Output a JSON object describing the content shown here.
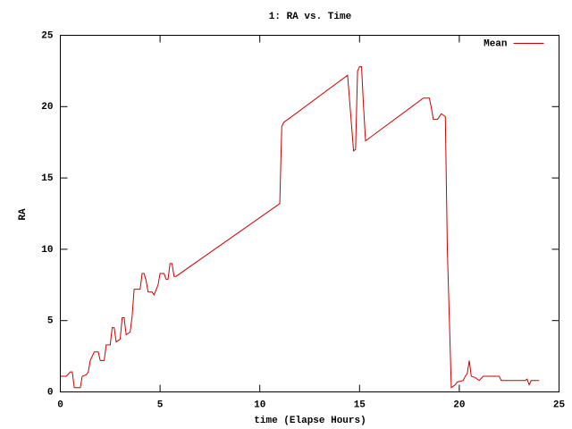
{
  "chart_data": {
    "type": "line",
    "title": "1: RA vs. Time",
    "xlabel": "time (Elapse Hours)",
    "ylabel": "RA",
    "x": [
      0,
      0.3,
      0.5,
      0.6,
      0.7,
      1.0,
      1.1,
      1.3,
      1.4,
      1.5,
      1.7,
      1.9,
      2.0,
      2.2,
      2.3,
      2.5,
      2.6,
      2.7,
      2.8,
      3.0,
      3.1,
      3.2,
      3.3,
      3.5,
      3.6,
      3.7,
      4.0,
      4.1,
      4.2,
      4.3,
      4.4,
      4.6,
      4.7,
      4.9,
      5.0,
      5.2,
      5.3,
      5.4,
      5.5,
      5.6,
      5.7,
      5.8,
      11.0,
      11.1,
      11.2,
      11.5,
      14.4,
      14.7,
      14.8,
      14.9,
      15.0,
      15.1,
      15.2,
      15.3,
      18.2,
      18.5,
      18.6,
      18.7,
      18.9,
      19.1,
      19.2,
      19.3,
      19.4,
      19.6,
      19.8,
      19.9,
      20.2,
      20.3,
      20.4,
      20.5,
      20.6,
      20.8,
      21.0,
      21.2,
      22.0,
      22.1,
      23.3,
      23.4,
      23.5,
      23.6,
      24.0
    ],
    "series": [
      {
        "name": "Mean",
        "color": "#cc0000",
        "values": [
          1.1,
          1.1,
          1.4,
          1.4,
          0.3,
          0.3,
          1.1,
          1.2,
          1.4,
          2.2,
          2.8,
          2.8,
          2.2,
          2.2,
          3.3,
          3.3,
          4.5,
          4.5,
          3.5,
          3.7,
          5.2,
          5.2,
          4.0,
          4.2,
          5.3,
          7.2,
          7.2,
          8.3,
          8.3,
          7.8,
          7.0,
          7.0,
          6.8,
          7.5,
          8.3,
          8.3,
          7.9,
          7.9,
          9.0,
          9.0,
          8.1,
          8.1,
          13.2,
          18.6,
          18.9,
          19.2,
          22.2,
          16.9,
          17.0,
          22.5,
          22.8,
          22.8,
          20.0,
          17.6,
          20.6,
          20.6,
          19.9,
          19.1,
          19.1,
          19.5,
          19.4,
          19.3,
          10.0,
          0.3,
          0.5,
          0.7,
          0.8,
          1.1,
          1.3,
          2.2,
          1.1,
          1.0,
          0.8,
          1.1,
          1.1,
          0.8,
          0.8,
          0.9,
          0.5,
          0.8,
          0.8
        ]
      }
    ],
    "xlim": [
      0,
      25
    ],
    "ylim": [
      0,
      25
    ],
    "xticks": [
      0,
      5,
      10,
      15,
      20,
      25
    ],
    "yticks": [
      0,
      5,
      10,
      15,
      20,
      25
    ],
    "legend": "upper right"
  }
}
